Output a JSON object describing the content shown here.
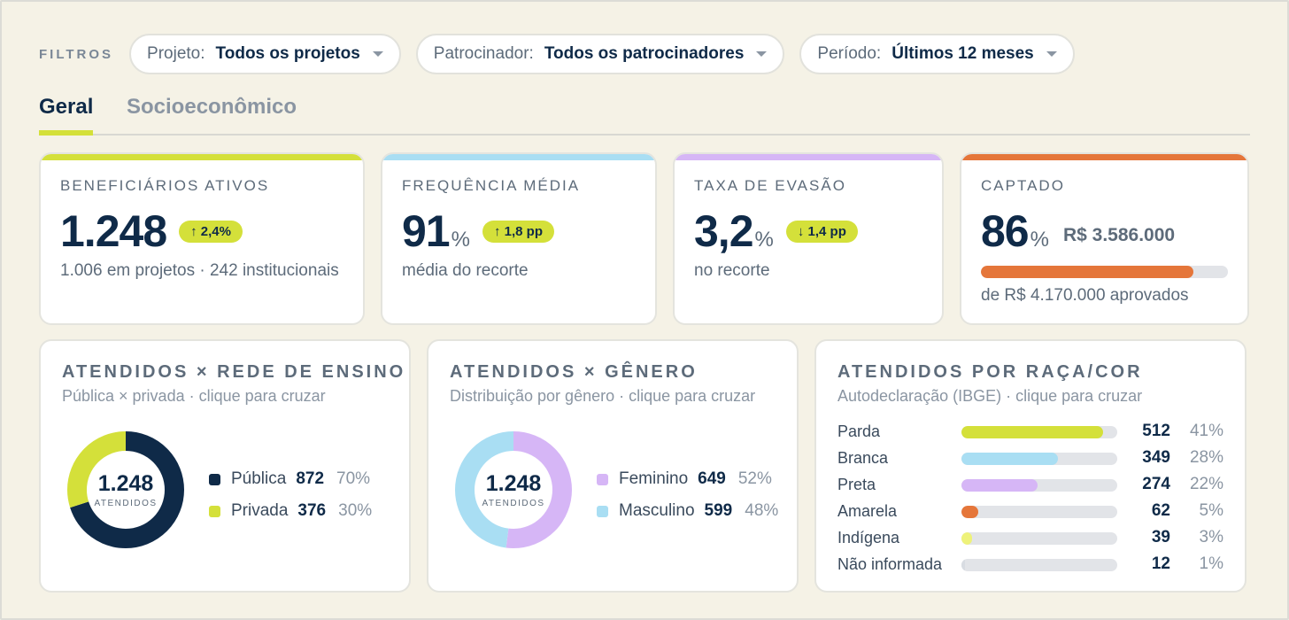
{
  "filters": {
    "label": "FILTROS",
    "items": [
      {
        "label": "Projeto:",
        "value": "Todos os projetos"
      },
      {
        "label": "Patrocinador:",
        "value": "Todos os patrocinadores"
      },
      {
        "label": "Período:",
        "value": "Últimos 12 meses"
      }
    ]
  },
  "tabs": [
    {
      "label": "Geral",
      "active": true
    },
    {
      "label": "Socioeconômico",
      "active": false
    }
  ],
  "kpis": [
    {
      "title": "BENEFICIÁRIOS ATIVOS",
      "value": "1.248",
      "unit": "",
      "chip": "↑ 2,4%",
      "sub": "1.006 em projetos · 242 institucionais",
      "color": "#d4e03a"
    },
    {
      "title": "FREQUÊNCIA MÉDIA",
      "value": "91",
      "unit": "%",
      "chip": "↑ 1,8 pp",
      "sub": "média do recorte",
      "color": "#a9def3"
    },
    {
      "title": "TAXA DE EVASÃO",
      "value": "3,2",
      "unit": "%",
      "chip": "↓ 1,4 pp",
      "sub": "no recorte",
      "color": "#d6b6f6"
    },
    {
      "title": "CAPTADO",
      "value": "86",
      "unit": "%",
      "money": "R$ 3.586.000",
      "progress": 0.86,
      "sub": "de R$ 4.170.000 aprovados",
      "color": "#e5763a"
    }
  ],
  "rede": {
    "title": "ATENDIDOS × REDE DE ENSINO",
    "subtitle": "Pública × privada · clique para cruzar",
    "total": "1.248",
    "total_label": "ATENDIDOS",
    "items": [
      {
        "name": "Pública",
        "value": "872",
        "pct": "70%",
        "share": 0.7,
        "color": "#0f2a48"
      },
      {
        "name": "Privada",
        "value": "376",
        "pct": "30%",
        "share": 0.3,
        "color": "#d4e03a"
      }
    ]
  },
  "genero": {
    "title": "ATENDIDOS × GÊNERO",
    "subtitle": "Distribuição por gênero · clique para cruzar",
    "total": "1.248",
    "total_label": "ATENDIDOS",
    "items": [
      {
        "name": "Feminino",
        "value": "649",
        "pct": "52%",
        "share": 0.52,
        "color": "#d6b6f6"
      },
      {
        "name": "Masculino",
        "value": "599",
        "pct": "48%",
        "share": 0.48,
        "color": "#a9def3"
      }
    ]
  },
  "raca": {
    "title": "ATENDIDOS POR RAÇA/COR",
    "subtitle": "Autodeclaração (IBGE) · clique para cruzar",
    "items": [
      {
        "name": "Parda",
        "value": "512",
        "pct": "41%",
        "share": 0.91,
        "color": "#d4e03a"
      },
      {
        "name": "Branca",
        "value": "349",
        "pct": "28%",
        "share": 0.62,
        "color": "#a9def3"
      },
      {
        "name": "Preta",
        "value": "274",
        "pct": "22%",
        "share": 0.49,
        "color": "#d6b6f6"
      },
      {
        "name": "Amarela",
        "value": "62",
        "pct": "5%",
        "share": 0.11,
        "color": "#e5763a"
      },
      {
        "name": "Indígena",
        "value": "39",
        "pct": "3%",
        "share": 0.07,
        "color": "#eef27a"
      },
      {
        "name": "Não informada",
        "value": "12",
        "pct": "1%",
        "share": 0.02,
        "color": "#d8dce2"
      }
    ]
  }
}
